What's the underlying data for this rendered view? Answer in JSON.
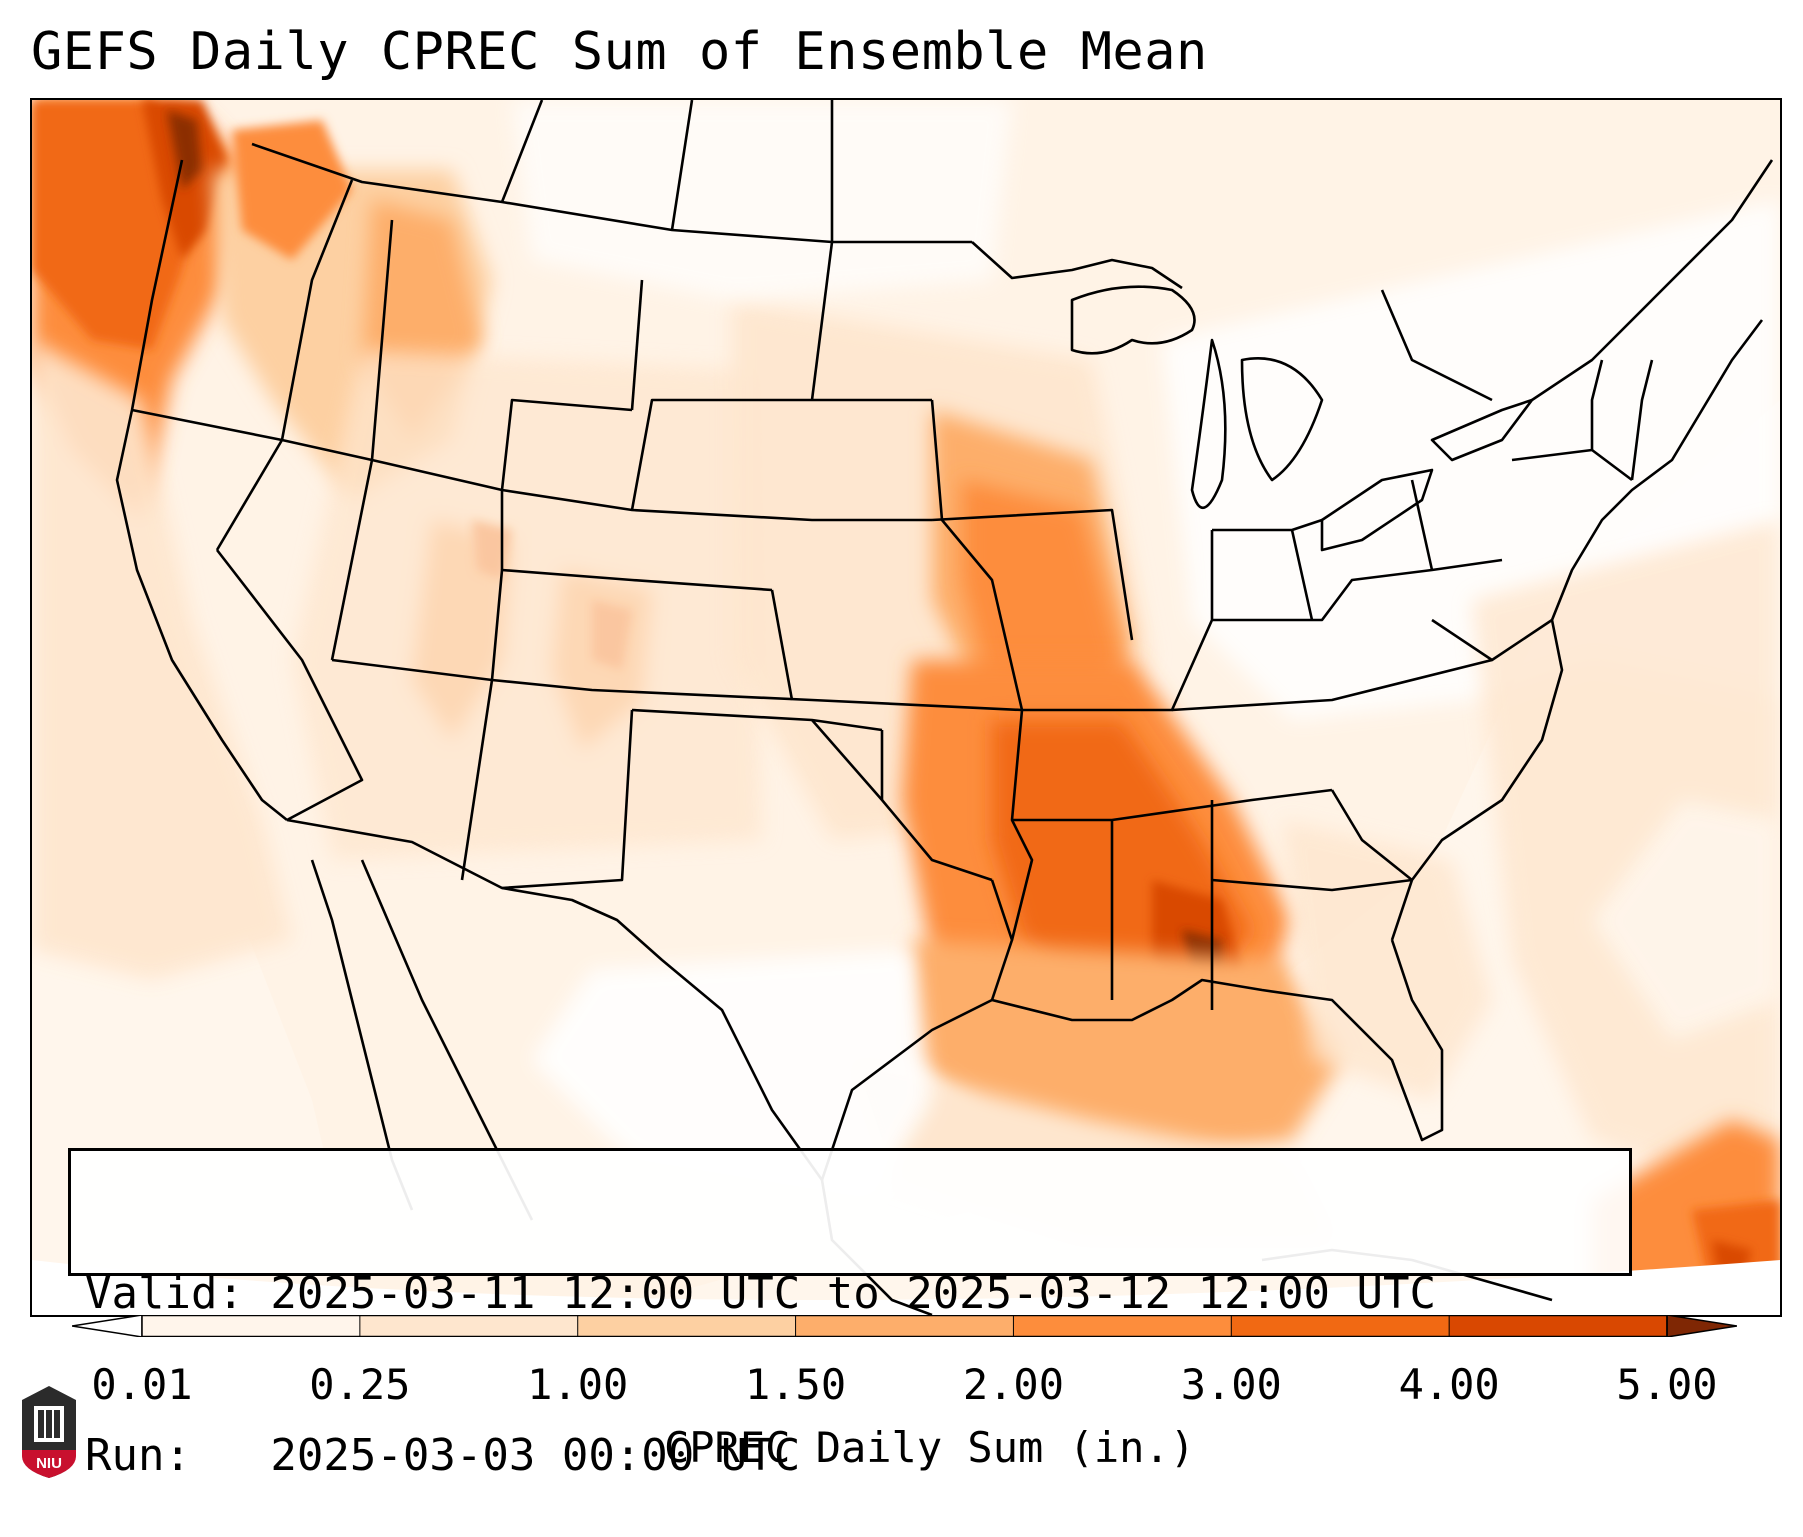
{
  "title": "GEFS Daily CPREC Sum of Ensemble Mean",
  "info": {
    "valid": "Valid: 2025-03-11 12:00 UTC to 2025-03-12 12:00 UTC",
    "run": "Run:   2025-03-03 00:00 UTC"
  },
  "colorbar": {
    "label": "CPREC Daily Sum (in.)",
    "ticks": [
      "0.01",
      "0.25",
      "1.00",
      "1.50",
      "2.00",
      "3.00",
      "4.00",
      "5.00"
    ],
    "colors": [
      "#fff5eb",
      "#fee6ce",
      "#fdd0a2",
      "#fdae6b",
      "#fd8d3c",
      "#f16913",
      "#d94801",
      "#8c2d04"
    ],
    "under_color": "#ffffff",
    "over_color": "#7f2704",
    "extend": "both"
  },
  "logo": {
    "text": "NIU",
    "accent": "#c8102e",
    "dark": "#2b2b2b"
  },
  "colors": {
    "ocean_far": "#fff6ec",
    "frame": "#000000"
  }
}
